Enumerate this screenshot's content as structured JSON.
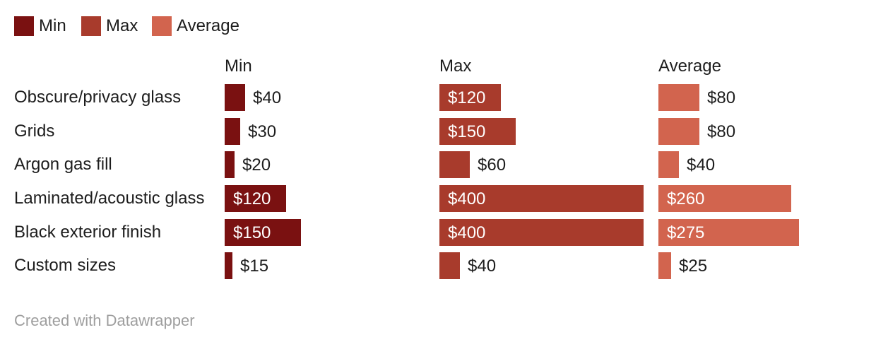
{
  "footer": {
    "credit": "Created with Datawrapper"
  },
  "chart_data": {
    "type": "bar",
    "variant": "split-bars",
    "categories": [
      "Obscure/privacy glass",
      "Grids",
      "Argon gas fill",
      "Laminated/acoustic glass",
      "Black exterior finish",
      "Custom sizes"
    ],
    "series": [
      {
        "name": "Min",
        "color": "#7a1111",
        "values": [
          40,
          30,
          20,
          120,
          150,
          15
        ]
      },
      {
        "name": "Max",
        "color": "#a83b2c",
        "values": [
          120,
          150,
          60,
          400,
          400,
          40
        ]
      },
      {
        "name": "Average",
        "color": "#d2644e",
        "values": [
          80,
          80,
          40,
          260,
          275,
          25
        ]
      }
    ],
    "column_headers": [
      "Min",
      "Max",
      "Average"
    ],
    "value_prefix": "$",
    "value_range": [
      0,
      400
    ],
    "grid": false,
    "legend_position": "top-left",
    "text_color": "#1d1d1d",
    "inside_label_color": "#ffffff",
    "credit_color": "#9e9e9e"
  }
}
